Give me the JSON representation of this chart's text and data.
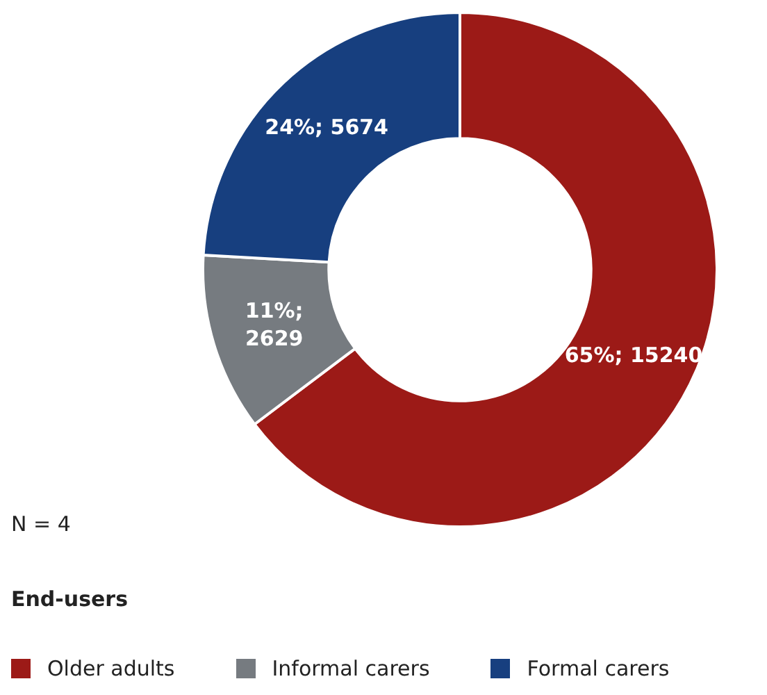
{
  "chart_data": {
    "type": "donut",
    "categories": [
      "Older adults",
      "Informal carers",
      "Formal carers"
    ],
    "values": [
      15240,
      2629,
      5674
    ],
    "colors": [
      "#9c1a17",
      "#767b80",
      "#173f7f"
    ],
    "value_labels": [
      "65%; 15240",
      "11%; 2629",
      "24%; 5674"
    ],
    "legend": "bottom",
    "legend_title": "End-users",
    "annotations": [
      "N = 4"
    ]
  }
}
